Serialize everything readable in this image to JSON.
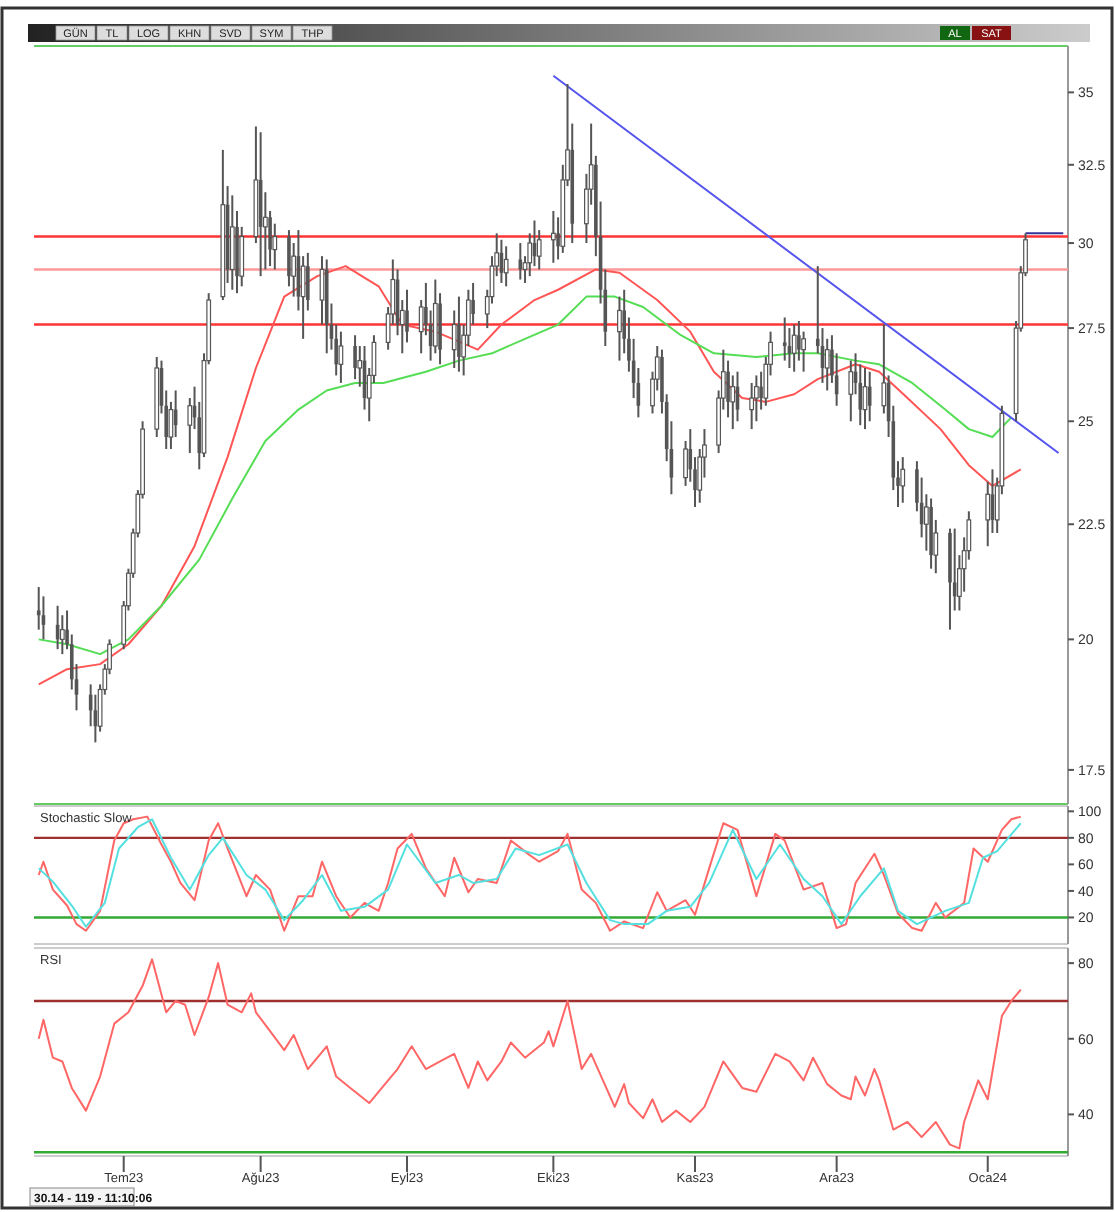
{
  "chart_data": [
    {
      "type": "candlestick",
      "color": "#555555",
      "log": "y",
      "tick_labels": "y",
      "xlim": [
        "2023-06-14",
        "2024-01-19"
      ],
      "ylim": [
        16.9,
        36.7
      ],
      "yticks": [
        17.5,
        20,
        22.5,
        25,
        27.5,
        30,
        32.5,
        35
      ],
      "annotations": [
        "GÜN",
        "TL",
        "LOG",
        "KHN",
        "SVD",
        "SYM",
        "THP",
        "AL",
        "SAT"
      ],
      "x": [
        "2023-06-15",
        "2023-06-16",
        "2023-06-19",
        "2023-06-20",
        "2023-06-21",
        "2023-06-22",
        "2023-06-23",
        "2023-06-26",
        "2023-06-27",
        "2023-06-28",
        "2023-06-29",
        "2023-06-30",
        "2023-07-03",
        "2023-07-04",
        "2023-07-05",
        "2023-07-06",
        "2023-07-07",
        "2023-07-10",
        "2023-07-11",
        "2023-07-12",
        "2023-07-13",
        "2023-07-14",
        "2023-07-17",
        "2023-07-18",
        "2023-07-19",
        "2023-07-20",
        "2023-07-21",
        "2023-07-24",
        "2023-07-25",
        "2023-07-26",
        "2023-07-27",
        "2023-07-28",
        "2023-07-31",
        "2023-08-01",
        "2023-08-02",
        "2023-08-03",
        "2023-08-04",
        "2023-08-07",
        "2023-08-08",
        "2023-08-09",
        "2023-08-10",
        "2023-08-11",
        "2023-08-14",
        "2023-08-15",
        "2023-08-16",
        "2023-08-17",
        "2023-08-18",
        "2023-08-21",
        "2023-08-22",
        "2023-08-23",
        "2023-08-24",
        "2023-08-25",
        "2023-08-28",
        "2023-08-29",
        "2023-08-30",
        "2023-08-31",
        "2023-09-01",
        "2023-09-04",
        "2023-09-05",
        "2023-09-06",
        "2023-09-07",
        "2023-09-08",
        "2023-09-11",
        "2023-09-12",
        "2023-09-13",
        "2023-09-14",
        "2023-09-15",
        "2023-09-18",
        "2023-09-19",
        "2023-09-20",
        "2023-09-21",
        "2023-09-22",
        "2023-09-25",
        "2023-09-26",
        "2023-09-27",
        "2023-09-28",
        "2023-09-29",
        "2023-10-02",
        "2023-10-03",
        "2023-10-04",
        "2023-10-05",
        "2023-10-06",
        "2023-10-09",
        "2023-10-10",
        "2023-10-11",
        "2023-10-12",
        "2023-10-13",
        "2023-10-16",
        "2023-10-17",
        "2023-10-18",
        "2023-10-19",
        "2023-10-20",
        "2023-10-23",
        "2023-10-24",
        "2023-10-25",
        "2023-10-26",
        "2023-10-27",
        "2023-10-30",
        "2023-10-31",
        "2023-11-01",
        "2023-11-02",
        "2023-11-03",
        "2023-11-06",
        "2023-11-07",
        "2023-11-08",
        "2023-11-09",
        "2023-11-10",
        "2023-11-13",
        "2023-11-14",
        "2023-11-15",
        "2023-11-16",
        "2023-11-17",
        "2023-11-20",
        "2023-11-21",
        "2023-11-22",
        "2023-11-23",
        "2023-11-24",
        "2023-11-27",
        "2023-11-28",
        "2023-11-29",
        "2023-11-30",
        "2023-12-01",
        "2023-12-04",
        "2023-12-05",
        "2023-12-06",
        "2023-12-07",
        "2023-12-08",
        "2023-12-11",
        "2023-12-12",
        "2023-12-13",
        "2023-12-14",
        "2023-12-15",
        "2023-12-18",
        "2023-12-19",
        "2023-12-20",
        "2023-12-21",
        "2023-12-22",
        "2023-12-25",
        "2023-12-26",
        "2023-12-27",
        "2023-12-28",
        "2023-12-29",
        "2024-01-02",
        "2024-01-03",
        "2024-01-04",
        "2024-01-05",
        "2024-01-08",
        "2024-01-09",
        "2024-01-10"
      ],
      "ohlc": [
        [
          20.6,
          21.1,
          20.2,
          20.5
        ],
        [
          20.5,
          20.9,
          20.0,
          20.3
        ],
        [
          20.3,
          20.7,
          19.8,
          20.0
        ],
        [
          20.0,
          20.5,
          19.7,
          20.2
        ],
        [
          20.2,
          20.6,
          19.8,
          19.9
        ],
        [
          19.9,
          20.1,
          19.0,
          19.2
        ],
        [
          19.2,
          19.5,
          18.6,
          18.9
        ],
        [
          18.9,
          19.1,
          18.3,
          18.6
        ],
        [
          18.6,
          18.9,
          18.0,
          18.3
        ],
        [
          18.3,
          19.1,
          18.2,
          19.0
        ],
        [
          19.0,
          19.5,
          18.9,
          19.4
        ],
        [
          19.4,
          20.0,
          19.3,
          19.9
        ],
        [
          19.9,
          20.8,
          19.8,
          20.7
        ],
        [
          20.7,
          21.5,
          20.6,
          21.4
        ],
        [
          21.4,
          22.4,
          21.3,
          22.3
        ],
        [
          22.3,
          23.3,
          22.2,
          23.2
        ],
        [
          23.2,
          25.0,
          23.1,
          24.8
        ],
        [
          24.8,
          26.7,
          24.6,
          26.4
        ],
        [
          26.4,
          26.6,
          25.2,
          25.4
        ],
        [
          25.4,
          25.8,
          24.3,
          24.6
        ],
        [
          24.6,
          25.5,
          24.3,
          25.3
        ],
        [
          25.3,
          25.8,
          24.6,
          24.9
        ],
        [
          24.9,
          25.6,
          24.2,
          25.4
        ],
        [
          25.4,
          25.9,
          24.8,
          25.1
        ],
        [
          25.1,
          25.5,
          23.8,
          24.2
        ],
        [
          24.2,
          26.8,
          24.1,
          26.6
        ],
        [
          26.6,
          28.5,
          26.5,
          28.3
        ],
        [
          28.4,
          33.0,
          28.3,
          31.2
        ],
        [
          31.2,
          31.8,
          28.8,
          29.2
        ],
        [
          29.2,
          31.5,
          28.6,
          30.5
        ],
        [
          30.5,
          31.0,
          28.5,
          29.0
        ],
        [
          29.0,
          30.5,
          28.7,
          30.2
        ],
        [
          30.2,
          33.8,
          30.0,
          32.0
        ],
        [
          32.0,
          33.6,
          29.0,
          30.5
        ],
        [
          30.5,
          31.6,
          29.2,
          30.8
        ],
        [
          30.8,
          31.0,
          29.3,
          29.8
        ],
        [
          29.8,
          30.6,
          29.2,
          30.2
        ],
        [
          30.2,
          30.4,
          28.7,
          29.0
        ],
        [
          29.0,
          30.0,
          28.4,
          29.6
        ],
        [
          29.6,
          30.4,
          28.0,
          28.4
        ],
        [
          28.4,
          29.6,
          27.2,
          29.3
        ],
        [
          29.3,
          29.7,
          28.0,
          28.3
        ],
        [
          28.3,
          29.6,
          27.6,
          29.2
        ],
        [
          29.2,
          29.5,
          26.8,
          27.6
        ],
        [
          27.6,
          28.2,
          26.9,
          27.2
        ],
        [
          27.2,
          27.6,
          26.2,
          26.5
        ],
        [
          26.5,
          27.4,
          26.0,
          27.0
        ],
        [
          27.0,
          27.3,
          26.1,
          26.4
        ],
        [
          26.4,
          27.0,
          25.9,
          26.6
        ],
        [
          26.6,
          27.0,
          25.3,
          25.6
        ],
        [
          25.6,
          26.4,
          25.0,
          26.2
        ],
        [
          26.2,
          27.3,
          26.0,
          27.1
        ],
        [
          27.1,
          28.1,
          26.9,
          27.9
        ],
        [
          27.9,
          29.5,
          27.6,
          28.9
        ],
        [
          28.9,
          29.2,
          27.3,
          27.6
        ],
        [
          27.6,
          28.3,
          26.8,
          28.0
        ],
        [
          28.0,
          28.6,
          27.1,
          27.4
        ],
        [
          27.4,
          28.3,
          26.8,
          28.1
        ],
        [
          28.1,
          28.8,
          27.3,
          27.6
        ],
        [
          27.6,
          28.0,
          26.6,
          27.0
        ],
        [
          27.0,
          28.9,
          26.8,
          28.2
        ],
        [
          28.2,
          28.5,
          26.5,
          26.9
        ],
        [
          26.9,
          28.0,
          26.4,
          27.6
        ],
        [
          27.6,
          28.4,
          26.3,
          26.7
        ],
        [
          26.7,
          27.6,
          26.2,
          27.3
        ],
        [
          27.3,
          28.6,
          27.0,
          28.3
        ],
        [
          28.3,
          28.8,
          27.6,
          27.9
        ],
        [
          27.9,
          28.6,
          27.5,
          28.4
        ],
        [
          28.4,
          29.6,
          28.2,
          29.3
        ],
        [
          29.3,
          30.3,
          29.0,
          29.7
        ],
        [
          29.7,
          30.1,
          28.8,
          29.1
        ],
        [
          29.1,
          29.9,
          28.7,
          29.5
        ],
        [
          29.5,
          30.0,
          28.9,
          29.2
        ],
        [
          29.2,
          29.6,
          28.8,
          29.4
        ],
        [
          29.4,
          30.3,
          29.0,
          30.0
        ],
        [
          30.0,
          30.7,
          29.3,
          29.6
        ],
        [
          29.6,
          30.4,
          29.2,
          30.1
        ],
        [
          30.1,
          31.0,
          29.4,
          30.3
        ],
        [
          30.3,
          30.8,
          29.5,
          29.9
        ],
        [
          29.9,
          32.5,
          29.7,
          32.0
        ],
        [
          32.0,
          35.3,
          31.8,
          33.0
        ],
        [
          33.0,
          33.9,
          30.0,
          30.6
        ],
        [
          30.6,
          32.2,
          30.0,
          31.7
        ],
        [
          31.7,
          33.9,
          31.2,
          32.5
        ],
        [
          32.5,
          32.8,
          29.6,
          30.2
        ],
        [
          30.2,
          31.3,
          28.2,
          28.6
        ],
        [
          28.6,
          29.2,
          27.0,
          27.4
        ],
        [
          27.4,
          28.4,
          26.6,
          28.0
        ],
        [
          28.0,
          28.6,
          26.8,
          27.2
        ],
        [
          27.2,
          27.8,
          26.3,
          26.6
        ],
        [
          26.6,
          27.2,
          25.6,
          26.0
        ],
        [
          26.0,
          26.4,
          25.1,
          25.4
        ],
        [
          25.4,
          26.3,
          25.2,
          26.1
        ],
        [
          26.1,
          27.0,
          25.8,
          26.7
        ],
        [
          26.7,
          26.9,
          25.2,
          25.5
        ],
        [
          25.5,
          25.7,
          24.0,
          24.3
        ],
        [
          24.3,
          25.0,
          23.2,
          23.6
        ],
        [
          23.6,
          24.5,
          23.4,
          24.3
        ],
        [
          24.3,
          24.8,
          23.5,
          23.8
        ],
        [
          23.8,
          24.1,
          22.9,
          23.3
        ],
        [
          23.3,
          24.3,
          23.0,
          24.1
        ],
        [
          24.1,
          24.8,
          23.6,
          24.4
        ],
        [
          24.4,
          25.8,
          24.2,
          25.6
        ],
        [
          25.6,
          26.9,
          25.3,
          26.3
        ],
        [
          26.3,
          26.6,
          25.1,
          25.5
        ],
        [
          25.5,
          26.2,
          24.8,
          25.9
        ],
        [
          25.9,
          26.3,
          25.0,
          25.3
        ],
        [
          25.3,
          26.0,
          24.8,
          25.6
        ],
        [
          25.6,
          26.2,
          25.0,
          25.9
        ],
        [
          25.9,
          26.3,
          25.3,
          25.6
        ],
        [
          25.6,
          26.7,
          25.4,
          26.5
        ],
        [
          26.5,
          27.4,
          26.2,
          27.1
        ],
        [
          27.1,
          27.8,
          26.6,
          27.0
        ],
        [
          27.0,
          27.5,
          26.4,
          26.8
        ],
        [
          26.8,
          27.6,
          26.3,
          27.3
        ],
        [
          27.3,
          27.7,
          26.6,
          26.9
        ],
        [
          26.9,
          27.4,
          26.3,
          27.2
        ],
        [
          27.2,
          29.3,
          26.8,
          27.0
        ],
        [
          27.0,
          27.5,
          26.0,
          26.4
        ],
        [
          26.4,
          27.2,
          25.8,
          26.9
        ],
        [
          26.9,
          27.3,
          26.0,
          26.2
        ],
        [
          26.2,
          26.8,
          25.4,
          25.7
        ],
        [
          25.7,
          26.6,
          25.0,
          26.3
        ],
        [
          26.3,
          26.8,
          25.7,
          26.0
        ],
        [
          26.0,
          26.5,
          24.9,
          25.3
        ],
        [
          25.3,
          26.4,
          24.8,
          25.9
        ],
        [
          25.9,
          26.3,
          25.0,
          25.4
        ],
        [
          25.4,
          27.6,
          25.2,
          26.0
        ],
        [
          26.0,
          26.2,
          24.6,
          25.0
        ],
        [
          25.0,
          25.4,
          23.3,
          23.6
        ],
        [
          23.6,
          24.0,
          22.9,
          23.4
        ],
        [
          23.4,
          24.1,
          23.0,
          23.8
        ],
        [
          23.8,
          24.0,
          22.8,
          23.0
        ],
        [
          23.0,
          23.6,
          22.2,
          22.5
        ],
        [
          22.5,
          23.2,
          21.9,
          22.9
        ],
        [
          22.9,
          23.1,
          21.5,
          21.8
        ],
        [
          21.8,
          22.6,
          21.4,
          22.3
        ],
        [
          22.3,
          22.4,
          20.2,
          21.2
        ],
        [
          21.2,
          22.4,
          20.6,
          20.9
        ],
        [
          20.9,
          21.8,
          20.6,
          21.5
        ],
        [
          21.5,
          22.2,
          21.0,
          21.9
        ],
        [
          21.9,
          22.8,
          21.7,
          22.6
        ],
        [
          22.6,
          23.5,
          22.0,
          23.2
        ],
        [
          23.2,
          23.8,
          22.3,
          22.6
        ],
        [
          22.6,
          23.6,
          22.3,
          23.4
        ],
        [
          23.4,
          25.4,
          23.2,
          25.2
        ],
        [
          25.2,
          27.7,
          25.0,
          27.5
        ],
        [
          27.5,
          29.3,
          27.4,
          29.1
        ],
        [
          29.1,
          30.3,
          29.0,
          30.1
        ]
      ],
      "series": [
        {
          "type": "line",
          "color": "#ff5555",
          "x": [
            "2023-06-15",
            "2023-06-21",
            "2023-06-28",
            "2023-07-04",
            "2023-07-11",
            "2023-07-18",
            "2023-07-25",
            "2023-07-31",
            "2023-08-06",
            "2023-08-13",
            "2023-08-19",
            "2023-08-26",
            "2023-08-31",
            "2023-09-07",
            "2023-09-16",
            "2023-09-21",
            "2023-09-28",
            "2023-10-03",
            "2023-10-11",
            "2023-10-16",
            "2023-10-24",
            "2023-10-31",
            "2023-11-05",
            "2023-11-11",
            "2023-11-16",
            "2023-11-22",
            "2023-11-27",
            "2023-12-05",
            "2023-12-10",
            "2023-12-16",
            "2023-12-23",
            "2023-12-29",
            "2024-01-03",
            "2024-01-09"
          ],
          "values": [
            19.1,
            19.4,
            19.5,
            19.9,
            20.7,
            22.0,
            24.1,
            26.4,
            28.4,
            29.0,
            29.3,
            28.7,
            27.6,
            27.4,
            26.9,
            27.6,
            28.3,
            28.6,
            29.2,
            29.1,
            28.3,
            27.4,
            26.3,
            25.6,
            25.5,
            25.7,
            26.1,
            26.5,
            26.3,
            25.6,
            24.8,
            23.9,
            23.4,
            23.8
          ]
        },
        {
          "type": "line",
          "color": "#55dd55",
          "x": [
            "2023-06-15",
            "2023-06-21",
            "2023-06-28",
            "2023-07-04",
            "2023-07-11",
            "2023-07-19",
            "2023-07-26",
            "2023-08-02",
            "2023-08-09",
            "2023-08-15",
            "2023-08-21",
            "2023-08-27",
            "2023-09-05",
            "2023-09-12",
            "2023-09-19",
            "2023-09-26",
            "2023-10-03",
            "2023-10-09",
            "2023-10-15",
            "2023-10-21",
            "2023-10-29",
            "2023-11-05",
            "2023-11-14",
            "2023-11-22",
            "2023-11-27",
            "2023-12-05",
            "2023-12-10",
            "2023-12-17",
            "2023-12-24",
            "2023-12-29",
            "2024-01-03",
            "2024-01-07"
          ],
          "values": [
            20.0,
            19.9,
            19.7,
            20.0,
            20.7,
            21.7,
            23.1,
            24.5,
            25.3,
            25.8,
            26.0,
            26.0,
            26.3,
            26.6,
            26.8,
            27.2,
            27.6,
            28.4,
            28.4,
            28.1,
            27.3,
            26.8,
            26.7,
            26.8,
            26.8,
            26.6,
            26.5,
            26.0,
            25.3,
            24.8,
            24.6,
            25.1
          ]
        },
        {
          "type": "line",
          "color": "#5555ee",
          "x": [
            "2023-10-02",
            "2024-01-17"
          ],
          "values": [
            35.6,
            24.2
          ]
        },
        {
          "type": "line",
          "color": "#333399",
          "x": [
            "2024-01-10",
            "2024-01-18"
          ],
          "values": [
            30.3,
            30.3
          ]
        }
      ],
      "ref_lines": [
        {
          "axis": "y",
          "value": 30.2,
          "color": "#ff3333"
        },
        {
          "axis": "y",
          "value": 29.2,
          "color": "#ff9999"
        },
        {
          "axis": "y",
          "value": 27.6,
          "color": "#ff3333"
        }
      ]
    },
    {
      "type": "line",
      "title": "Stochastic Slow",
      "tick_labels": "y",
      "xlim": [
        "2023-06-14",
        "2024-01-19"
      ],
      "ylim": [
        0,
        104
      ],
      "yticks": [
        20,
        40,
        60,
        80,
        100
      ],
      "ref_lines": [
        {
          "axis": "y",
          "value": 80,
          "color": "#a03030"
        },
        {
          "axis": "y",
          "value": 20,
          "color": "#33aa33"
        }
      ],
      "series": [
        {
          "color": "#ff6666",
          "x": [
            "2023-06-15",
            "2023-06-16",
            "2023-06-18",
            "2023-06-21",
            "2023-06-23",
            "2023-06-25",
            "2023-06-28",
            "2023-07-01",
            "2023-07-03",
            "2023-07-05",
            "2023-07-08",
            "2023-07-11",
            "2023-07-13",
            "2023-07-15",
            "2023-07-18",
            "2023-07-21",
            "2023-07-23",
            "2023-07-25",
            "2023-07-29",
            "2023-07-31",
            "2023-08-03",
            "2023-08-06",
            "2023-08-09",
            "2023-08-12",
            "2023-08-14",
            "2023-08-17",
            "2023-08-20",
            "2023-08-23",
            "2023-08-26",
            "2023-08-28",
            "2023-08-30",
            "2023-09-02",
            "2023-09-05",
            "2023-09-09",
            "2023-09-11",
            "2023-09-14",
            "2023-09-16",
            "2023-09-20",
            "2023-09-23",
            "2023-09-27",
            "2023-09-29",
            "2023-10-03",
            "2023-10-05",
            "2023-10-08",
            "2023-10-11",
            "2023-10-14",
            "2023-10-17",
            "2023-10-21",
            "2023-10-24",
            "2023-10-26",
            "2023-10-30",
            "2023-11-01",
            "2023-11-04",
            "2023-11-07",
            "2023-11-10",
            "2023-11-14",
            "2023-11-18",
            "2023-11-20",
            "2023-11-24",
            "2023-11-28",
            "2023-12-01",
            "2023-12-03",
            "2023-12-05",
            "2023-12-09",
            "2023-12-11",
            "2023-12-14",
            "2023-12-17",
            "2023-12-19",
            "2023-12-22",
            "2023-12-24",
            "2023-12-28",
            "2023-12-30",
            "2024-01-02",
            "2024-01-05",
            "2024-01-07",
            "2024-01-09"
          ],
          "values": [
            52,
            62,
            41,
            29,
            15,
            10,
            25,
            78,
            91,
            94,
            96,
            75,
            62,
            46,
            33,
            78,
            91,
            72,
            36,
            52,
            41,
            10,
            36,
            36,
            62,
            36,
            20,
            31,
            25,
            46,
            72,
            83,
            57,
            36,
            65,
            39,
            49,
            46,
            78,
            67,
            62,
            70,
            83,
            41,
            31,
            10,
            17,
            12,
            39,
            25,
            33,
            22,
            57,
            91,
            86,
            36,
            83,
            78,
            41,
            46,
            12,
            15,
            46,
            68,
            52,
            23,
            12,
            10,
            31,
            20,
            31,
            72,
            62,
            86,
            94,
            96
          ]
        },
        {
          "color": "#55e0e0",
          "x": [
            "2023-06-15",
            "2023-06-18",
            "2023-06-22",
            "2023-06-25",
            "2023-06-29",
            "2023-07-02",
            "2023-07-06",
            "2023-07-09",
            "2023-07-13",
            "2023-07-17",
            "2023-07-21",
            "2023-07-24",
            "2023-07-29",
            "2023-08-02",
            "2023-08-06",
            "2023-08-10",
            "2023-08-14",
            "2023-08-18",
            "2023-08-23",
            "2023-08-28",
            "2023-09-01",
            "2023-09-07",
            "2023-09-12",
            "2023-09-15",
            "2023-09-20",
            "2023-09-24",
            "2023-09-29",
            "2023-10-05",
            "2023-10-09",
            "2023-10-14",
            "2023-10-17",
            "2023-10-22",
            "2023-10-26",
            "2023-10-31",
            "2023-11-04",
            "2023-11-09",
            "2023-11-14",
            "2023-11-19",
            "2023-11-24",
            "2023-11-28",
            "2023-12-02",
            "2023-12-06",
            "2023-12-11",
            "2023-12-14",
            "2023-12-18",
            "2023-12-24",
            "2023-12-29",
            "2024-01-01",
            "2024-01-04",
            "2024-01-09"
          ],
          "values": [
            57,
            47,
            29,
            13,
            31,
            72,
            88,
            94,
            65,
            41,
            67,
            80,
            52,
            41,
            18,
            33,
            52,
            25,
            28,
            41,
            75,
            46,
            52,
            46,
            49,
            72,
            67,
            75,
            46,
            18,
            15,
            15,
            25,
            28,
            46,
            86,
            49,
            75,
            49,
            36,
            15,
            36,
            57,
            25,
            15,
            25,
            31,
            65,
            70,
            91
          ]
        }
      ]
    },
    {
      "type": "line",
      "title": "RSI",
      "xlim": [
        "2023-06-14",
        "2024-01-19"
      ],
      "ylim": [
        29,
        84
      ],
      "yticks": [
        40,
        60,
        80
      ],
      "xticks": [
        {
          "value": "2023-07-03",
          "label": "Tem23"
        },
        {
          "value": "2023-08-01",
          "label": "Ağu23"
        },
        {
          "value": "2023-09-01",
          "label": "Eyl23"
        },
        {
          "value": "2023-10-02",
          "label": "Eki23"
        },
        {
          "value": "2023-11-01",
          "label": "Kas23"
        },
        {
          "value": "2023-12-01",
          "label": "Ara23"
        },
        {
          "value": "2024-01-02",
          "label": "Oca24"
        }
      ],
      "annotations": [
        "30.14 - 119 - 11:10:06"
      ],
      "ref_lines": [
        {
          "axis": "y",
          "value": 70,
          "color": "#a03030"
        },
        {
          "axis": "y",
          "value": 30,
          "color": "#33aa33"
        }
      ],
      "series": [
        {
          "color": "#ff6666",
          "x": [
            "2023-06-15",
            "2023-06-16",
            "2023-06-18",
            "2023-06-20",
            "2023-06-22",
            "2023-06-25",
            "2023-06-28",
            "2023-07-01",
            "2023-07-04",
            "2023-07-07",
            "2023-07-09",
            "2023-07-12",
            "2023-07-14",
            "2023-07-16",
            "2023-07-18",
            "2023-07-21",
            "2023-07-23",
            "2023-07-25",
            "2023-07-28",
            "2023-07-30",
            "2023-07-31",
            "2023-08-03",
            "2023-08-06",
            "2023-08-08",
            "2023-08-11",
            "2023-08-15",
            "2023-08-17",
            "2023-08-20",
            "2023-08-24",
            "2023-08-28",
            "2023-08-30",
            "2023-09-02",
            "2023-09-05",
            "2023-09-08",
            "2023-09-11",
            "2023-09-14",
            "2023-09-16",
            "2023-09-18",
            "2023-09-21",
            "2023-09-23",
            "2023-09-26",
            "2023-09-30",
            "2023-10-01",
            "2023-10-02",
            "2023-10-05",
            "2023-10-08",
            "2023-10-10",
            "2023-10-15",
            "2023-10-17",
            "2023-10-18",
            "2023-10-21",
            "2023-10-23",
            "2023-10-25",
            "2023-10-28",
            "2023-10-31",
            "2023-11-03",
            "2023-11-07",
            "2023-11-11",
            "2023-11-14",
            "2023-11-18",
            "2023-11-21",
            "2023-11-24",
            "2023-11-26",
            "2023-11-29",
            "2023-12-02",
            "2023-12-04",
            "2023-12-05",
            "2023-12-07",
            "2023-12-09",
            "2023-12-10",
            "2023-12-13",
            "2023-12-16",
            "2023-12-19",
            "2023-12-22",
            "2023-12-25",
            "2023-12-27",
            "2023-12-28",
            "2023-12-31",
            "2024-01-02",
            "2024-01-05",
            "2024-01-07",
            "2024-01-09"
          ],
          "values": [
            60,
            65,
            55,
            54,
            47,
            41,
            50,
            64,
            67,
            74,
            81,
            67,
            70,
            69,
            61,
            71,
            80,
            69,
            67,
            72,
            67,
            62,
            57,
            61,
            52,
            58,
            50,
            47,
            43,
            49,
            52,
            58,
            52,
            54,
            56,
            47,
            54,
            49,
            54,
            59,
            55,
            59,
            62,
            58,
            70,
            52,
            56,
            42,
            48,
            43,
            39,
            44,
            38,
            41,
            38,
            42,
            54,
            47,
            46,
            56,
            54,
            49,
            55,
            48,
            45,
            44,
            50,
            45,
            52,
            49,
            36,
            38,
            34,
            38,
            32,
            31,
            38,
            49,
            44,
            66,
            70,
            73
          ]
        }
      ]
    }
  ]
}
